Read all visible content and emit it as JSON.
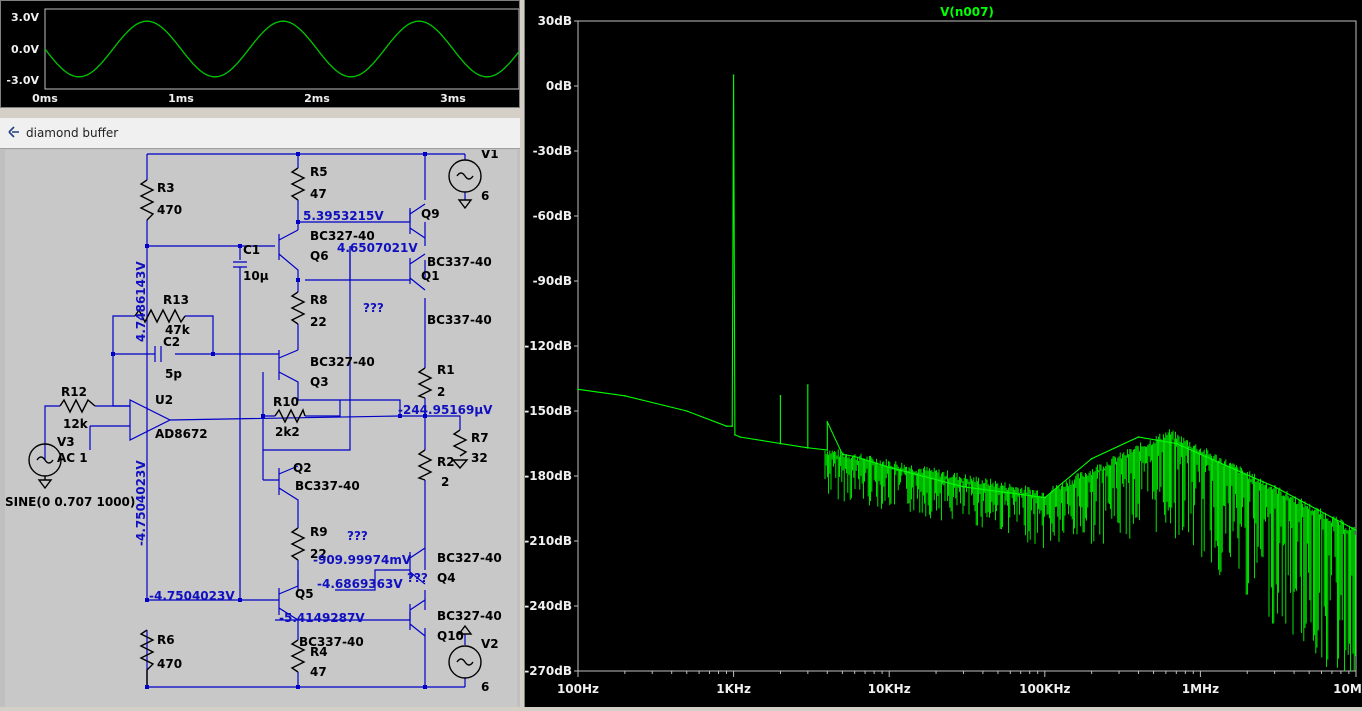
{
  "waveform": {
    "y_ticks": [
      "3.0V",
      "0.0V",
      "-3.0V"
    ],
    "x_ticks": [
      "0ms",
      "1ms",
      "2ms",
      "3ms"
    ],
    "trace_color": "#00c800"
  },
  "schematic": {
    "title": "diamond buffer",
    "components": {
      "r3": {
        "ref": "R3",
        "value": "470"
      },
      "r5": {
        "ref": "R5",
        "value": "47"
      },
      "r13": {
        "ref": "R13",
        "value": "47k"
      },
      "c1": {
        "ref": "C1",
        "value": "10μ"
      },
      "c2": {
        "ref": "C2",
        "value": "5p"
      },
      "r8": {
        "ref": "R8",
        "value": "22"
      },
      "r12": {
        "ref": "R12",
        "value": "12k"
      },
      "u2": {
        "ref": "U2",
        "value": "AD8672"
      },
      "r10": {
        "ref": "R10",
        "value": "2k2"
      },
      "v3": {
        "ref": "V3",
        "value": "AC 1",
        "source": "SINE(0 0.707 1000)"
      },
      "q6": {
        "ref": "Q6",
        "value": "BC327-40"
      },
      "q3": {
        "ref": "Q3",
        "value": "BC327-40"
      },
      "q2": {
        "ref": "Q2",
        "value": "BC337-40"
      },
      "r9": {
        "ref": "R9",
        "value": "22"
      },
      "q5": {
        "ref": "Q5",
        "value": "BC337-40"
      },
      "r6": {
        "ref": "R6",
        "value": "470"
      },
      "r4": {
        "ref": "R4",
        "value": "47"
      },
      "q9": {
        "ref": "Q9",
        "value": ""
      },
      "q1": {
        "ref": "Q1",
        "value": "BC337-40",
        "value2": "BC337-40"
      },
      "r1": {
        "ref": "R1",
        "value": "2"
      },
      "r2": {
        "ref": "R2",
        "value": "2"
      },
      "r7": {
        "ref": "R7",
        "value": "32"
      },
      "q4": {
        "ref": "Q4",
        "value": "BC327-40"
      },
      "q10": {
        "ref": "Q10",
        "value": "BC327-40"
      },
      "v1": {
        "ref": "V1",
        "value": "6"
      },
      "v2": {
        "ref": "V2",
        "value": "6"
      }
    },
    "node_voltages": {
      "n1": "5.3953215V",
      "n2": "4.6507021V",
      "n3": "4.7486143V",
      "n4": "-244.95169μV",
      "n5": "-4.7504023V",
      "n6": "-4.7504023V",
      "n7": "-909.99974mV",
      "n8": "-4.6869363V",
      "n9": "-5.4149287V"
    },
    "unknown_markers": [
      "???",
      "???",
      "???"
    ],
    "wire_color": "#0000c8",
    "node_label_color": "#1010c0"
  },
  "fft": {
    "trace_label": "V(n007)",
    "y_ticks": [
      "30dB",
      "0dB",
      "-30dB",
      "-60dB",
      "-90dB",
      "-120dB",
      "-150dB",
      "-180dB",
      "-210dB",
      "-240dB",
      "-270dB"
    ],
    "x_ticks": [
      "100Hz",
      "1KHz",
      "10KHz",
      "100KHz",
      "1MHz",
      "10MHz"
    ],
    "trace_color": "#00ff00",
    "log_x": true
  },
  "chart_data": {
    "type": "line",
    "title": "V(n007)",
    "xlabel": "",
    "ylabel": "",
    "x_scale": "log",
    "xlim": [
      100,
      10000000
    ],
    "ylim": [
      -270,
      30
    ],
    "series": [
      {
        "name": "V(n007)",
        "x": [
          100,
          200,
          500,
          900,
          980,
          1000,
          1020,
          1100,
          2000,
          2000,
          2000,
          3000,
          3000,
          3000,
          4000,
          4000,
          5000,
          6000,
          10000,
          30000,
          100000,
          200000,
          400000,
          700000,
          1000000,
          3000000,
          10000000
        ],
        "y": [
          -140,
          -143,
          -150,
          -157,
          -157,
          5,
          -161,
          -162,
          -165,
          -143,
          -165,
          -167,
          -138,
          -167,
          -168,
          -155,
          -170,
          -171,
          -176,
          -185,
          -190,
          -172,
          -162,
          -165,
          -170,
          -185,
          -205
        ]
      }
    ]
  }
}
